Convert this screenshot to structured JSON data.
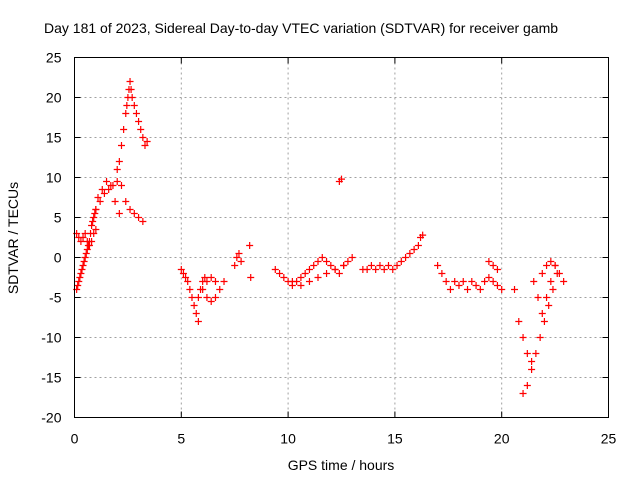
{
  "chart_data": {
    "type": "scatter",
    "title": "Day 181 of 2023, Sidereal Day-to-day VTEC variation (SDTVAR) for receiver gamb",
    "xlabel": "GPS time / hours",
    "ylabel": "SDTVAR / TECUs",
    "xlim": [
      0,
      25
    ],
    "ylim": [
      -20,
      25
    ],
    "xticks": [
      0,
      5,
      10,
      15,
      20,
      25
    ],
    "yticks": [
      -20,
      -15,
      -10,
      -5,
      0,
      5,
      10,
      15,
      20,
      25
    ],
    "grid": true,
    "marker": "+",
    "color": "#ff0000",
    "series": [
      {
        "name": "SDTVAR",
        "x": [
          0.1,
          0.15,
          0.2,
          0.25,
          0.3,
          0.35,
          0.4,
          0.45,
          0.5,
          0.55,
          0.6,
          0.65,
          0.7,
          0.75,
          0.8,
          0.85,
          0.9,
          0.95,
          1.0,
          0.1,
          0.2,
          0.3,
          0.4,
          0.5,
          0.6,
          0.7,
          0.8,
          0.9,
          1.0,
          1.0,
          1.2,
          1.4,
          1.6,
          1.8,
          2.0,
          2.2,
          2.4,
          2.6,
          2.8,
          3.0,
          3.2,
          1.1,
          1.3,
          1.5,
          1.7,
          1.9,
          2.1,
          2.0,
          2.1,
          2.2,
          2.3,
          2.4,
          2.45,
          2.5,
          2.55,
          2.6,
          2.65,
          2.7,
          2.8,
          2.9,
          3.0,
          3.1,
          3.2,
          3.3,
          3.4,
          5.0,
          5.1,
          5.2,
          5.3,
          5.4,
          5.5,
          5.6,
          5.7,
          5.8,
          5.8,
          5.9,
          6.0,
          6.1,
          6.2,
          6.4,
          6.6,
          6.0,
          6.2,
          6.4,
          6.6,
          6.8,
          7.0,
          7.5,
          7.6,
          7.7,
          7.8,
          8.2,
          8.25,
          9.4,
          9.6,
          9.8,
          10.0,
          10.2,
          10.4,
          10.6,
          10.8,
          11.0,
          11.2,
          11.4,
          11.6,
          11.8,
          12.0,
          12.2,
          12.4,
          12.6,
          12.8,
          13.0,
          10.2,
          10.6,
          11.0,
          11.4,
          11.8,
          12.2,
          12.6,
          12.4,
          12.5,
          13.5,
          13.7,
          13.9,
          14.1,
          14.3,
          14.5,
          14.7,
          14.9,
          15.1,
          15.3,
          15.5,
          15.7,
          15.9,
          16.1,
          16.2,
          16.3,
          17.0,
          17.2,
          17.4,
          17.6,
          17.8,
          18.0,
          18.2,
          18.4,
          18.6,
          18.8,
          19.0,
          19.2,
          19.4,
          19.6,
          19.8,
          20.0,
          19.4,
          19.6,
          19.8,
          20.6,
          20.8,
          21.0,
          21.2,
          21.4,
          21.0,
          21.2,
          21.4,
          21.6,
          21.8,
          22.0,
          22.2,
          22.4,
          22.6,
          21.5,
          21.7,
          21.9,
          22.1,
          22.3,
          22.5,
          22.7,
          22.9,
          21.9,
          22.1,
          22.3,
          22.5
        ],
        "y": [
          -4,
          -3.5,
          -3,
          -2.5,
          -2,
          -1.5,
          -1,
          -0.5,
          0,
          0.5,
          1,
          1.5,
          2,
          3,
          4,
          4.5,
          5,
          5.5,
          6,
          3,
          2.5,
          2,
          2.5,
          3,
          2,
          1.5,
          2,
          3,
          3.5,
          6,
          7,
          8,
          8.5,
          9,
          9.5,
          9,
          7,
          6,
          5.5,
          5,
          4.5,
          7.5,
          8.5,
          9.5,
          9,
          7,
          5.5,
          11,
          12,
          14,
          16,
          18,
          19,
          20,
          21,
          22,
          21,
          20,
          19,
          18,
          17,
          16,
          15,
          14,
          14.5,
          -1.5,
          -2,
          -2.5,
          -3,
          -4,
          -5,
          -6,
          -7,
          -8,
          -5,
          -4,
          -3,
          -2.5,
          -3,
          -2.5,
          -3,
          -4,
          -5,
          -5.5,
          -5,
          -4,
          -3,
          -1,
          0,
          0.5,
          -0.5,
          1.5,
          -2.5,
          -1.5,
          -2,
          -2.5,
          -3,
          -3.5,
          -3,
          -2.5,
          -2,
          -1.5,
          -1,
          -0.5,
          0,
          -0.5,
          -1,
          -1.5,
          -2,
          -1,
          -0.5,
          0,
          -3,
          -3.5,
          -3,
          -2.5,
          -2,
          -1.5,
          -1,
          9.5,
          9.8,
          -1.5,
          -1.5,
          -1,
          -1.5,
          -1,
          -1.5,
          -1,
          -1.5,
          -1,
          -0.5,
          0,
          0.5,
          1,
          1.5,
          2.5,
          2.8,
          -1,
          -2,
          -3,
          -4,
          -3,
          -3.5,
          -3,
          -4,
          -3,
          -3.5,
          -4,
          -3,
          -2.5,
          -3,
          -3.5,
          -4,
          -0.5,
          -1,
          -1.5,
          -4,
          -8,
          -10,
          -12,
          -13,
          -17,
          -16,
          -14,
          -12,
          -10,
          -8,
          -6,
          -4,
          -2,
          -3,
          -5,
          -7,
          -5,
          -3,
          -1,
          -2,
          -3,
          -2,
          -1,
          -0.5,
          -1
        ]
      }
    ]
  }
}
